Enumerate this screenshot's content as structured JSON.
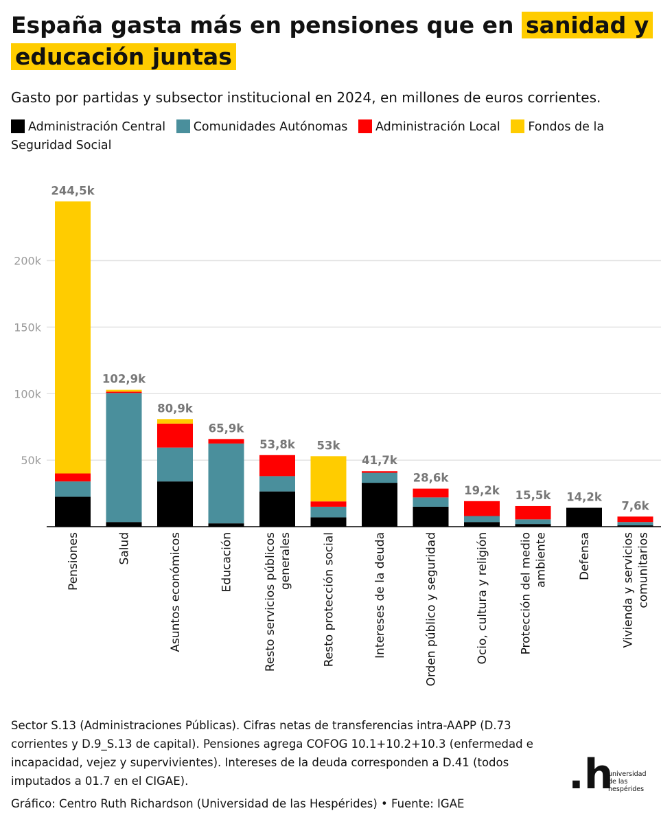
{
  "header": {
    "title_part1": "España gasta más en pensiones que en",
    "title_highlight": "sanidad y educación juntas",
    "subtitle": "Gasto por partidas y subsector institucional en 2024, en millones de euros corrientes."
  },
  "legend": [
    {
      "label": "Administración Central",
      "color": "#000000"
    },
    {
      "label": "Comunidades Autónomas",
      "color": "#4a8f9c"
    },
    {
      "label": "Administración Local",
      "color": "#ff0000"
    },
    {
      "label": "Fondos de la Seguridad Social",
      "color": "#ffcc00"
    }
  ],
  "chart_data": {
    "type": "bar",
    "stacked": true,
    "categories": [
      "Pensiones",
      "Salud",
      "Asuntos económicos",
      "Educación",
      "Resto servicios públicos generales",
      "Resto protección social",
      "Intereses de la deuda",
      "Orden público y seguridad",
      "Ocio, cultura y religión",
      "Protección del medio ambiente",
      "Defensa",
      "Vivienda y servicios comunitarios"
    ],
    "category_lines": [
      [
        "Pensiones"
      ],
      [
        "Salud"
      ],
      [
        "Asuntos económicos"
      ],
      [
        "Educación"
      ],
      [
        "Resto servicios públicos",
        "generales"
      ],
      [
        "Resto protección social"
      ],
      [
        "Intereses de la deuda"
      ],
      [
        "Orden público y seguridad"
      ],
      [
        "Ocio, cultura y religión"
      ],
      [
        "Protección del medio",
        "ambiente"
      ],
      [
        "Defensa"
      ],
      [
        "Vivienda y servicios",
        "comunitarios"
      ]
    ],
    "series": [
      {
        "name": "Administración Central",
        "color": "#000000",
        "values": [
          22500,
          3500,
          34000,
          2500,
          26500,
          7000,
          33000,
          15000,
          3500,
          2000,
          14200,
          1000
        ]
      },
      {
        "name": "Comunidades Autónomas",
        "color": "#4a8f9c",
        "values": [
          11500,
          97000,
          25500,
          60000,
          11500,
          8000,
          7500,
          7000,
          4500,
          3500,
          0,
          2500
        ]
      },
      {
        "name": "Administración Local",
        "color": "#ff0000",
        "values": [
          6000,
          1000,
          18000,
          3400,
          15800,
          4000,
          1200,
          6600,
          11200,
          10000,
          0,
          4100
        ]
      },
      {
        "name": "Fondos de la Seguridad Social",
        "color": "#ffcc00",
        "values": [
          204500,
          1400,
          3400,
          0,
          0,
          34000,
          0,
          0,
          0,
          0,
          0,
          0
        ]
      }
    ],
    "totals": [
      244500,
      102900,
      80900,
      65900,
      53800,
      53000,
      41700,
      28600,
      19200,
      15500,
      14200,
      7600
    ],
    "total_labels": [
      "244,5k",
      "102,9k",
      "80,9k",
      "65,9k",
      "53,8k",
      "53k",
      "41,7k",
      "28,6k",
      "19,2k",
      "15,5k",
      "14,2k",
      "7,6k"
    ],
    "y_ticks": [
      50000,
      100000,
      150000,
      200000
    ],
    "y_tick_labels": [
      "50k",
      "100k",
      "150k",
      "200k"
    ],
    "ylim": [
      0,
      250000
    ],
    "grid": true,
    "legend_position": "top"
  },
  "footer": {
    "note": "Sector S.13 (Administraciones Públicas). Cifras netas de transferencias intra-AAPP (D.73 corrientes y D.9_S.13 de capital). Pensiones agrega COFOG 10.1+10.2+10.3 (enfermedad e incapacidad, vejez y supervivientes). Intereses de la deuda corresponden a D.41 (todos imputados a 01.7 en el CIGAE).",
    "credit": "Gráfico: Centro Ruth Richardson (Universidad de las Hespérides) • Fuente: IGAE"
  },
  "logo": {
    "mark": ".h",
    "line1": "universidad",
    "line2": "de las",
    "line3": "hespérides"
  }
}
